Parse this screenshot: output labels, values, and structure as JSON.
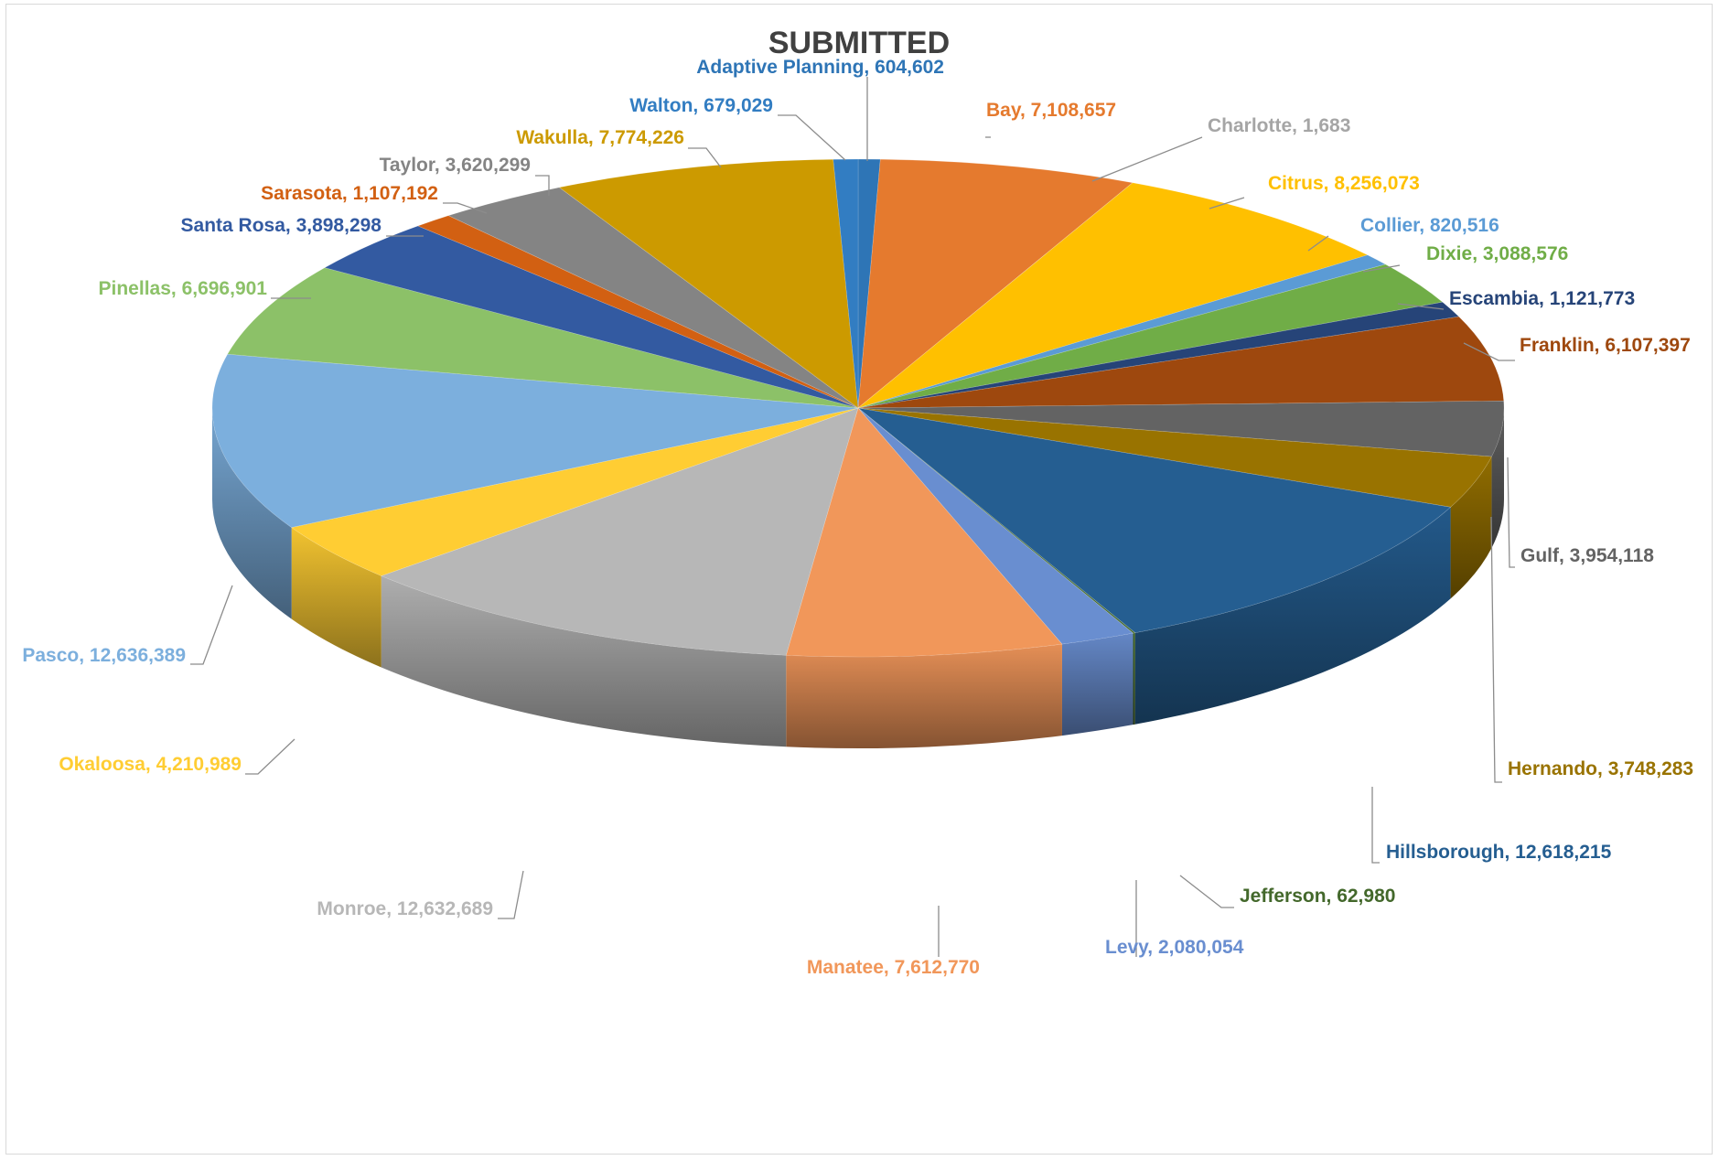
{
  "chart_data": {
    "type": "pie",
    "title": "SUBMITTED",
    "style": "3d",
    "slices": [
      {
        "label": "Adaptive Planning",
        "value_text": "604,602",
        "value": 604602,
        "color": "#2e75b6",
        "label_color": "#2e75b6"
      },
      {
        "label": "Bay",
        "value_text": "7,108,657",
        "value": 7108657,
        "color": "#e57a2e",
        "label_color": "#e57a2e"
      },
      {
        "label": "Charlotte",
        "value_text": "1,683",
        "value": 1683,
        "color": "#a5a5a5",
        "label_color": "#a5a5a5"
      },
      {
        "label": "Citrus",
        "value_text": "8,256,073",
        "value": 8256073,
        "color": "#ffc000",
        "label_color": "#ffc000"
      },
      {
        "label": "Collier",
        "value_text": "820,516",
        "value": 820516,
        "color": "#5b9bd5",
        "label_color": "#5b9bd5"
      },
      {
        "label": "Dixie",
        "value_text": "3,088,576",
        "value": 3088576,
        "color": "#70ad47",
        "label_color": "#70ad47"
      },
      {
        "label": "Escambia",
        "value_text": "1,121,773",
        "value": 1121773,
        "color": "#264478",
        "label_color": "#264478"
      },
      {
        "label": "Franklin",
        "value_text": "6,107,397",
        "value": 6107397,
        "color": "#9e480e",
        "label_color": "#9e480e"
      },
      {
        "label": "Gulf",
        "value_text": "3,954,118",
        "value": 3954118,
        "color": "#636363",
        "label_color": "#636363"
      },
      {
        "label": "Hernando",
        "value_text": "3,748,283",
        "value": 3748283,
        "color": "#997300",
        "label_color": "#997300"
      },
      {
        "label": "Hillsborough",
        "value_text": "12,618,215",
        "value": 12618215,
        "color": "#255e91",
        "label_color": "#255e91"
      },
      {
        "label": "Jefferson",
        "value_text": "62,980",
        "value": 62980,
        "color": "#43682b",
        "label_color": "#43682b"
      },
      {
        "label": "Levy",
        "value_text": "2,080,054",
        "value": 2080054,
        "color": "#698ed0",
        "label_color": "#698ed0"
      },
      {
        "label": "Manatee",
        "value_text": "7,612,770",
        "value": 7612770,
        "color": "#f1975a",
        "label_color": "#f1975a"
      },
      {
        "label": "Monroe",
        "value_text": "12,632,689",
        "value": 12632689,
        "color": "#b7b7b7",
        "label_color": "#b7b7b7"
      },
      {
        "label": "Okaloosa",
        "value_text": "4,210,989",
        "value": 4210989,
        "color": "#ffcd33",
        "label_color": "#ffcd33"
      },
      {
        "label": "Pasco",
        "value_text": "12,636,389",
        "value": 12636389,
        "color": "#7cafdd",
        "label_color": "#7cafdd"
      },
      {
        "label": "Pinellas",
        "value_text": "6,696,901",
        "value": 6696901,
        "color": "#8cc168",
        "label_color": "#8cc168"
      },
      {
        "label": "Santa Rosa",
        "value_text": "3,898,298",
        "value": 3898298,
        "color": "#335aa1",
        "label_color": "#335aa1"
      },
      {
        "label": "Sarasota",
        "value_text": "1,107,192",
        "value": 1107192,
        "color": "#d26012",
        "label_color": "#d26012"
      },
      {
        "label": "Taylor",
        "value_text": "3,620,299",
        "value": 3620299,
        "color": "#848484",
        "label_color": "#848484"
      },
      {
        "label": "Wakulla",
        "value_text": "7,774,226",
        "value": 7774226,
        "color": "#cc9a00",
        "label_color": "#cc9a00"
      },
      {
        "label": "Walton",
        "value_text": "679,029",
        "value": 679029,
        "color": "#327dc2",
        "label_color": "#327dc2"
      }
    ]
  }
}
